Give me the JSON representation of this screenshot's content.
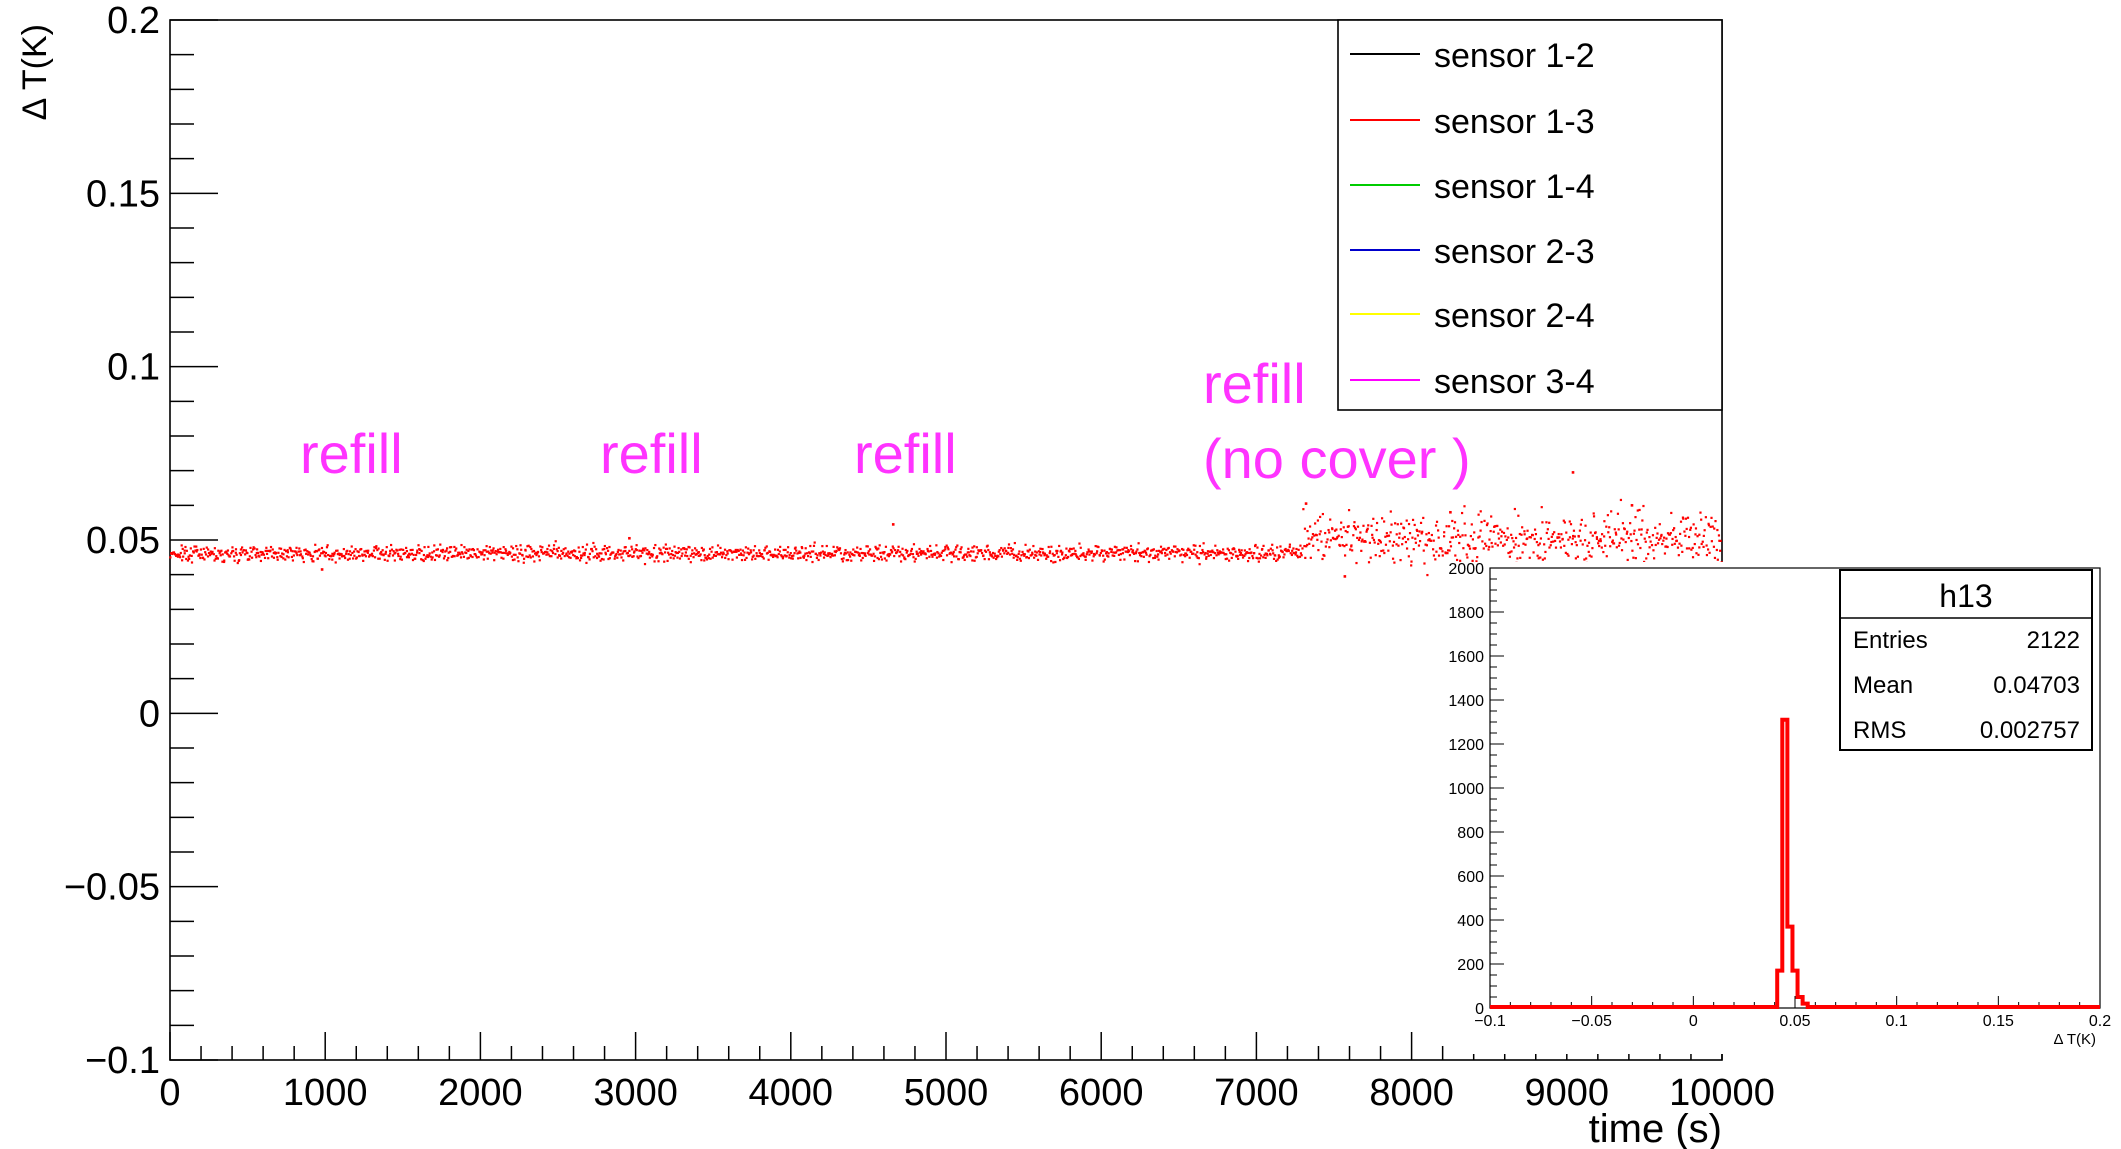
{
  "chart_data": [
    {
      "type": "scatter",
      "title": "",
      "xlabel": "time (s)",
      "ylabel": "Δ T(K)",
      "xlim": [
        0,
        10000
      ],
      "ylim": [
        -0.1,
        0.2
      ],
      "x_ticks": [
        "0",
        "1000",
        "2000",
        "3000",
        "4000",
        "5000",
        "6000",
        "7000",
        "8000",
        "9000",
        "10000"
      ],
      "y_ticks": [
        "−0.1",
        "−0.05",
        "0",
        "0.05",
        "0.1",
        "0.15",
        "0.2"
      ],
      "grid": false,
      "legend_position": "top-right",
      "legend": [
        {
          "name": "sensor 1-2",
          "color": "#000000"
        },
        {
          "name": "sensor 1-3",
          "color": "#ff0000"
        },
        {
          "name": "sensor 1-4",
          "color": "#00cc00"
        },
        {
          "name": "sensor 2-3",
          "color": "#0000cc"
        },
        {
          "name": "sensor 2-4",
          "color": "#ffff00"
        },
        {
          "name": "sensor 3-4",
          "color": "#ff00ff"
        }
      ],
      "series": [
        {
          "name": "sensor 1-3",
          "color": "#ff0000",
          "segments": [
            {
              "x_start": 0,
              "x_end": 7300,
              "mean": 0.0462,
              "spread": 0.0011
            },
            {
              "x_start": 7300,
              "x_end": 10000,
              "mean": 0.0505,
              "spread": 0.0035
            }
          ],
          "n_points": 2122,
          "outliers": [
            {
              "x": 980,
              "y": 0.0415
            },
            {
              "x": 2960,
              "y": 0.0505
            },
            {
              "x": 4660,
              "y": 0.0545
            },
            {
              "x": 7320,
              "y": 0.0605
            },
            {
              "x": 7570,
              "y": 0.0395
            },
            {
              "x": 8250,
              "y": 0.058
            },
            {
              "x": 9040,
              "y": 0.0695
            },
            {
              "x": 9420,
              "y": 0.06
            }
          ]
        }
      ],
      "annotations": [
        {
          "text": "refill",
          "x": 1000,
          "y": 0.07
        },
        {
          "text": "refill",
          "x": 3000,
          "y": 0.07
        },
        {
          "text": "refill",
          "x": 4600,
          "y": 0.07
        },
        {
          "text": "refill",
          "x": 7600,
          "y": 0.09
        },
        {
          "text": "(no cover )",
          "x": 7600,
          "y": 0.07
        }
      ],
      "annotation_color": "#ff33ff"
    },
    {
      "type": "bar",
      "title": "h13",
      "xlabel": "Δ T(K)",
      "ylabel": "",
      "xlim": [
        -0.1,
        0.2
      ],
      "ylim": [
        0,
        2000
      ],
      "x_ticks": [
        "−0.1",
        "−0.05",
        "0",
        "0.05",
        "0.1",
        "0.15",
        "0.2"
      ],
      "y_ticks": [
        "0",
        "200",
        "400",
        "600",
        "800",
        "1000",
        "1200",
        "1400",
        "1600",
        "1800",
        "2000"
      ],
      "bin_width": 0.0025,
      "bins": [
        {
          "x": 0.0425,
          "count": 170
        },
        {
          "x": 0.045,
          "count": 1310
        },
        {
          "x": 0.0475,
          "count": 370
        },
        {
          "x": 0.05,
          "count": 170
        },
        {
          "x": 0.0525,
          "count": 50
        },
        {
          "x": 0.055,
          "count": 20
        }
      ],
      "color": "#ff0000",
      "stats": {
        "name": "h13",
        "rows": [
          {
            "label": "Entries",
            "value": "2122"
          },
          {
            "label": "Mean",
            "value": "0.04703"
          },
          {
            "label": "RMS",
            "value": "0.002757"
          }
        ]
      }
    }
  ]
}
